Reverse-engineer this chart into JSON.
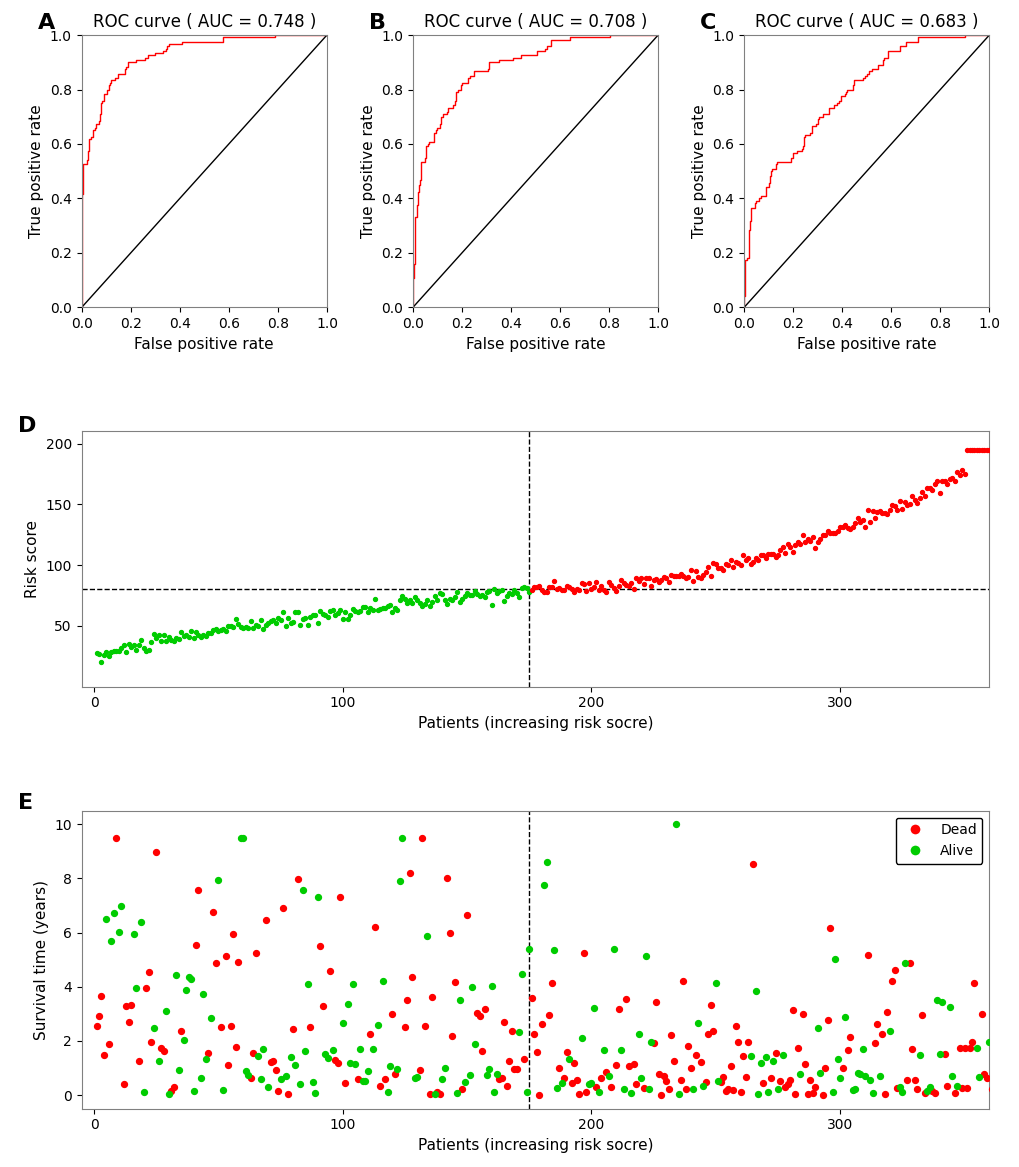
{
  "roc_A": {
    "auc": 0.748,
    "label": "ROC curve ( AUC = 0.748 )"
  },
  "roc_B": {
    "auc": 0.708,
    "label": "ROC curve ( AUC = 0.708 )"
  },
  "roc_C": {
    "auc": 0.683,
    "label": "ROC curve ( AUC = 0.683 )"
  },
  "roc_color": "#FF0000",
  "diag_color": "#000000",
  "panel_labels": [
    "A",
    "B",
    "C",
    "D",
    "E"
  ],
  "panel_label_fontsize": 16,
  "title_fontsize": 12,
  "axis_label_fontsize": 11,
  "tick_fontsize": 10,
  "n_patients": 370,
  "cutoff_patient": 175,
  "cutoff_risk_score": 80,
  "risk_score_ylim": [
    0,
    210
  ],
  "risk_score_yticks": [
    50,
    100,
    150,
    200
  ],
  "survival_ylim": [
    -0.5,
    10.5
  ],
  "survival_yticks": [
    0,
    2,
    4,
    6,
    8,
    10
  ],
  "patients_xticks": [
    0,
    100,
    200,
    300
  ],
  "xlabel_scatter": "Patients (increasing risk socre)",
  "ylabel_D": "Risk score",
  "ylabel_E": "Survival time (years)",
  "xlabel_roc": "False positive rate",
  "ylabel_roc": "True positive rate",
  "legend_dead_color": "#FF0000",
  "legend_alive_color": "#00CC00"
}
